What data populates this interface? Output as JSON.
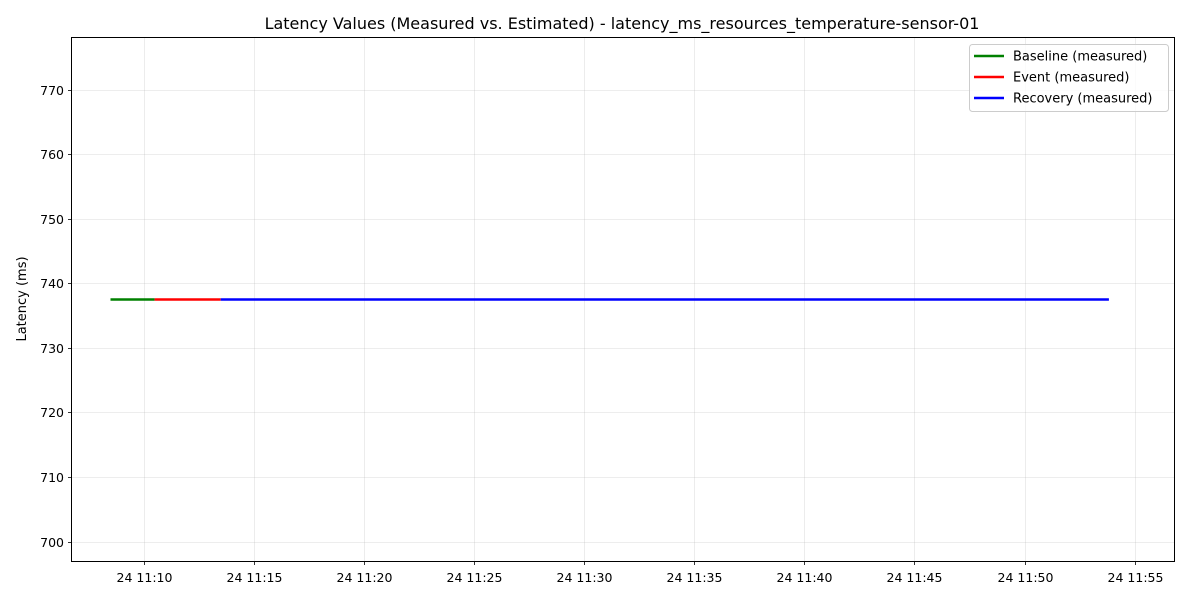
{
  "chart_data": {
    "type": "line",
    "title": "Latency Values (Measured vs. Estimated) - latency_ms_resources_temperature-sensor-01",
    "xlabel": "",
    "ylabel": "Latency (ms)",
    "x_unit": "time",
    "xlim": [
      "11:06:45",
      "11:56:50"
    ],
    "ylim": [
      697,
      778
    ],
    "x_ticks": [
      {
        "time": "11:10",
        "label": "24 11:10"
      },
      {
        "time": "11:15",
        "label": "24 11:15"
      },
      {
        "time": "11:20",
        "label": "24 11:20"
      },
      {
        "time": "11:25",
        "label": "24 11:25"
      },
      {
        "time": "11:30",
        "label": "24 11:30"
      },
      {
        "time": "11:35",
        "label": "24 11:35"
      },
      {
        "time": "11:40",
        "label": "24 11:40"
      },
      {
        "time": "11:45",
        "label": "24 11:45"
      },
      {
        "time": "11:50",
        "label": "24 11:50"
      },
      {
        "time": "11:55",
        "label": "24 11:55"
      }
    ],
    "y_ticks": [
      700,
      710,
      720,
      730,
      740,
      750,
      760,
      770
    ],
    "grid": true,
    "legend_position": "top-right",
    "series": [
      {
        "name": "Baseline (measured)",
        "color": "#008000",
        "points": [
          {
            "x": "11:08:30",
            "y": 737.5
          },
          {
            "x": "11:10:30",
            "y": 737.5
          }
        ]
      },
      {
        "name": "Event (measured)",
        "color": "#ff0000",
        "points": [
          {
            "x": "11:10:30",
            "y": 737.5
          },
          {
            "x": "11:13:30",
            "y": 737.5
          }
        ]
      },
      {
        "name": "Recovery (measured)",
        "color": "#0000ff",
        "points": [
          {
            "x": "11:13:30",
            "y": 737.5
          },
          {
            "x": "11:53:50",
            "y": 737.5
          }
        ]
      }
    ]
  }
}
